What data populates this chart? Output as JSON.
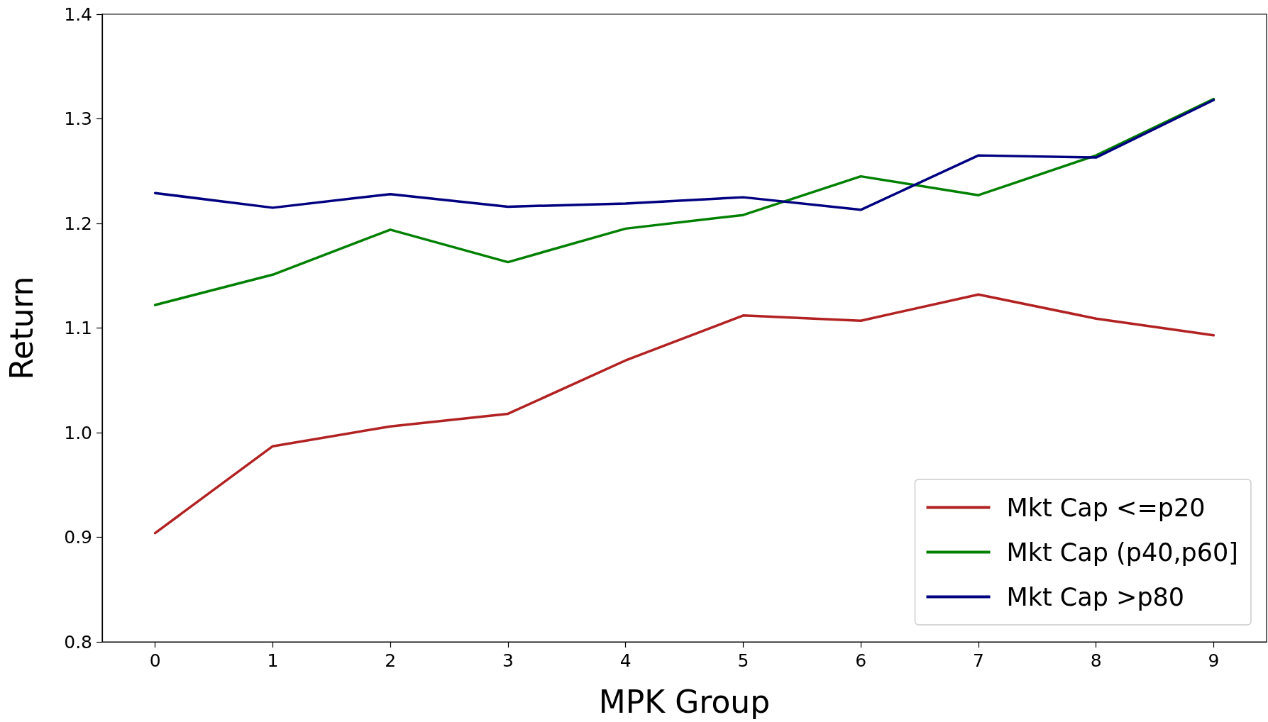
{
  "chart_data": {
    "type": "line",
    "xlabel": "MPK Group",
    "ylabel": "Return",
    "x": [
      0,
      1,
      2,
      3,
      4,
      5,
      6,
      7,
      8,
      9
    ],
    "xlim": [
      -0.45,
      9.45
    ],
    "xticks": [
      0,
      1,
      2,
      3,
      4,
      5,
      6,
      7,
      8,
      9
    ],
    "ylim": [
      0.8,
      1.4
    ],
    "yticks": [
      {
        "value": 0.8,
        "label": "0.8"
      },
      {
        "value": 0.9,
        "label": "0.9"
      },
      {
        "value": 1.0,
        "label": "1.0"
      },
      {
        "value": 1.1,
        "label": "1.1"
      },
      {
        "value": 1.2,
        "label": "1.2"
      },
      {
        "value": 1.3,
        "label": "1.3"
      },
      {
        "value": 1.4,
        "label": "1.4"
      }
    ],
    "grid": false,
    "legend": "bottom right",
    "marker": "none",
    "line_style": "solid",
    "series": [
      {
        "name": "Mkt Cap <=p20",
        "color": "#b22222",
        "values": [
          0.904,
          0.987,
          1.006,
          1.018,
          1.069,
          1.112,
          1.107,
          1.132,
          1.109,
          1.093
        ]
      },
      {
        "name": "Mkt Cap (p40,p60]",
        "color": "#008000",
        "values": [
          1.122,
          1.151,
          1.194,
          1.163,
          1.195,
          1.208,
          1.245,
          1.227,
          1.265,
          1.319
        ]
      },
      {
        "name": "Mkt Cap >p80",
        "color": "#000080",
        "values": [
          1.229,
          1.215,
          1.228,
          1.216,
          1.219,
          1.225,
          1.213,
          1.265,
          1.263,
          1.318
        ]
      }
    ]
  }
}
